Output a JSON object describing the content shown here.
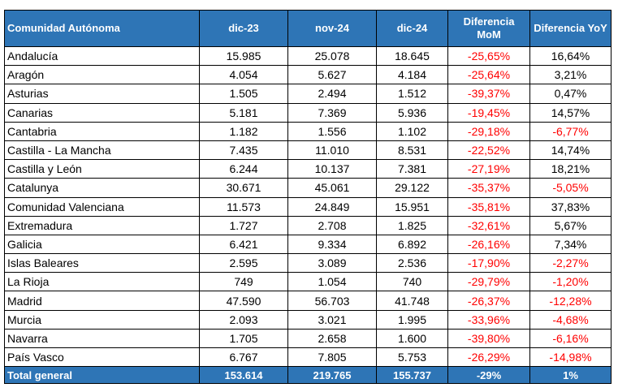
{
  "table": {
    "headers": [
      "Comunidad Autónoma",
      "dic-23",
      "nov-24",
      "dic-24",
      "Diferencia MoM",
      "Diferencia YoY"
    ],
    "rows": [
      [
        "Andalucía",
        "15.985",
        "25.078",
        "18.645",
        "-25,65%",
        "16,64%"
      ],
      [
        "Aragón",
        "4.054",
        "5.627",
        "4.184",
        "-25,64%",
        "3,21%"
      ],
      [
        "Asturias",
        "1.505",
        "2.494",
        "1.512",
        "-39,37%",
        "0,47%"
      ],
      [
        "Canarias",
        "5.181",
        "7.369",
        "5.936",
        "-19,45%",
        "14,57%"
      ],
      [
        "Cantabria",
        "1.182",
        "1.556",
        "1.102",
        "-29,18%",
        "-6,77%"
      ],
      [
        "Castilla - La Mancha",
        "7.435",
        "11.010",
        "8.531",
        "-22,52%",
        "14,74%"
      ],
      [
        "Castilla y León",
        "6.244",
        "10.137",
        "7.381",
        "-27,19%",
        "18,21%"
      ],
      [
        "Catalunya",
        "30.671",
        "45.061",
        "29.122",
        "-35,37%",
        "-5,05%"
      ],
      [
        "Comunidad Valenciana",
        "11.573",
        "24.849",
        "15.951",
        "-35,81%",
        "37,83%"
      ],
      [
        "Extremadura",
        "1.727",
        "2.708",
        "1.825",
        "-32,61%",
        "5,67%"
      ],
      [
        "Galicia",
        "6.421",
        "9.334",
        "6.892",
        "-26,16%",
        "7,34%"
      ],
      [
        "Islas Baleares",
        "2.595",
        "3.089",
        "2.536",
        "-17,90%",
        "-2,27%"
      ],
      [
        "La Rioja",
        "749",
        "1.054",
        "740",
        "-29,79%",
        "-1,20%"
      ],
      [
        "Madrid",
        "47.590",
        "56.703",
        "41.748",
        "-26,37%",
        "-12,28%"
      ],
      [
        "Murcia",
        "2.093",
        "3.021",
        "1.995",
        "-33,96%",
        "-4,68%"
      ],
      [
        "Navarra",
        "1.705",
        "2.658",
        "1.600",
        "-39,80%",
        "-6,16%"
      ],
      [
        "País Vasco",
        "6.767",
        "7.805",
        "5.753",
        "-26,29%",
        "-14,98%"
      ]
    ],
    "total": [
      "Total general",
      "153.614",
      "219.765",
      "155.737",
      "-29%",
      "1%"
    ]
  }
}
